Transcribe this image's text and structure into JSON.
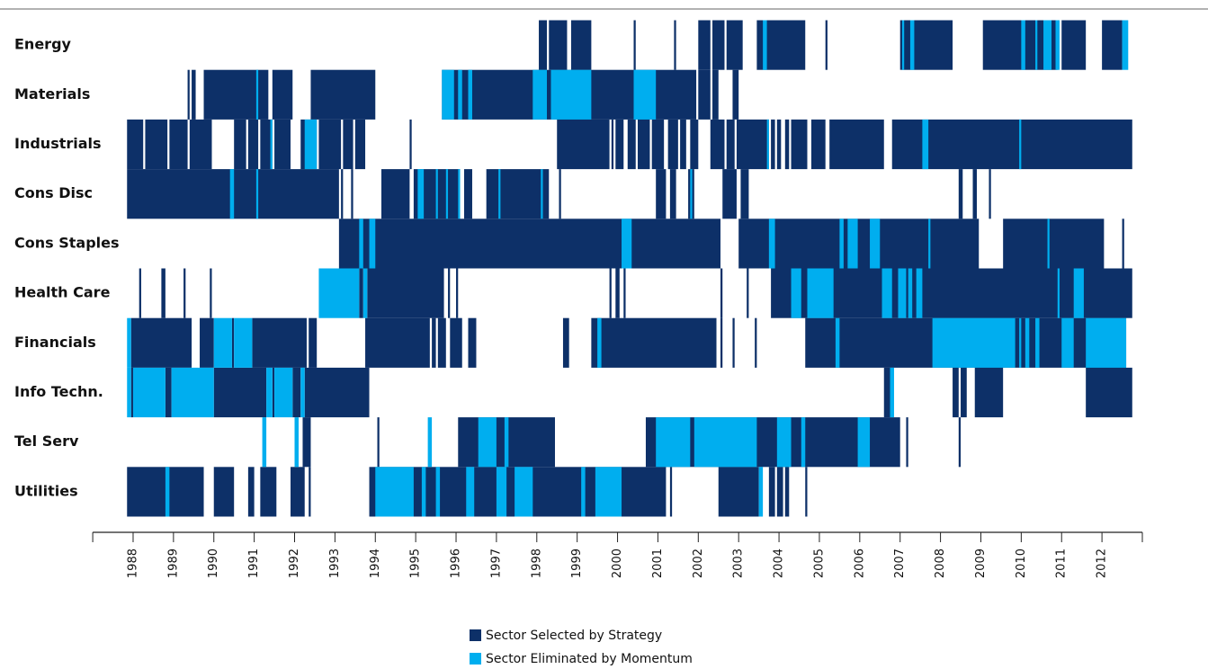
{
  "chart_data": {
    "type": "timeline",
    "categories": [
      "Energy",
      "Materials",
      "Industrials",
      "Cons Disc",
      "Cons Staples",
      "Health Care",
      "Financials",
      "Info Techn.",
      "Tel Serv",
      "Utilities"
    ],
    "xlim": [
      1987,
      2013
    ],
    "xticks": [
      1988,
      1989,
      1990,
      1991,
      1992,
      1993,
      1994,
      1995,
      1996,
      1997,
      1998,
      1999,
      2000,
      2001,
      2002,
      2003,
      2004,
      2005,
      2006,
      2007,
      2008,
      2009,
      2010,
      2011,
      2012
    ],
    "series": [
      {
        "name": "Sector Selected by Strategy",
        "color": "#0d3068",
        "intervals": [
          [
            [
              1998.05,
              1998.25
            ],
            [
              1998.3,
              1998.75
            ],
            [
              1998.85,
              1999.35
            ],
            [
              2000.4,
              2000.45
            ],
            [
              2001.4,
              2001.45
            ],
            [
              2002.0,
              2002.3
            ],
            [
              2002.35,
              2002.65
            ],
            [
              2002.7,
              2003.1
            ],
            [
              2003.45,
              2004.65
            ],
            [
              2005.15,
              2005.2
            ],
            [
              2007.0,
              2008.3
            ],
            [
              2009.05,
              2010.9
            ],
            [
              2011.0,
              2011.6
            ],
            [
              2012.0,
              2012.5
            ]
          ],
          [
            [
              1989.35,
              1989.4
            ],
            [
              1989.45,
              1989.55
            ],
            [
              1989.75,
              1991.35
            ],
            [
              1991.45,
              1991.95
            ],
            [
              1992.4,
              1994.0
            ],
            [
              1995.65,
              2001.95
            ],
            [
              2002.0,
              2002.3
            ],
            [
              2002.35,
              2002.5
            ],
            [
              2002.85,
              2003.0
            ]
          ],
          [
            [
              1987.85,
              1988.25
            ],
            [
              1988.3,
              1988.85
            ],
            [
              1988.9,
              1989.35
            ],
            [
              1989.4,
              1989.95
            ],
            [
              1990.5,
              1990.8
            ],
            [
              1990.85,
              1991.1
            ],
            [
              1991.15,
              1991.45
            ],
            [
              1991.5,
              1991.9
            ],
            [
              1992.15,
              1992.55
            ],
            [
              1992.6,
              1993.15
            ],
            [
              1993.2,
              1993.45
            ],
            [
              1993.5,
              1993.75
            ],
            [
              1994.85,
              1994.9
            ],
            [
              1998.5,
              1999.8
            ],
            [
              1999.85,
              1999.9
            ],
            [
              1999.95,
              2000.15
            ],
            [
              2000.25,
              2000.45
            ],
            [
              2000.5,
              2000.8
            ],
            [
              2000.85,
              2001.15
            ],
            [
              2001.25,
              2001.5
            ],
            [
              2001.55,
              2001.7
            ],
            [
              2001.8,
              2002.0
            ],
            [
              2002.3,
              2002.65
            ],
            [
              2002.7,
              2002.9
            ],
            [
              2002.95,
              2003.75
            ],
            [
              2003.8,
              2003.9
            ],
            [
              2003.95,
              2004.05
            ],
            [
              2004.15,
              2004.25
            ],
            [
              2004.3,
              2004.7
            ],
            [
              2004.8,
              2005.15
            ],
            [
              2005.25,
              2006.6
            ],
            [
              2006.8,
              2012.75
            ]
          ],
          [
            [
              1987.85,
              1993.1
            ],
            [
              1993.15,
              1993.2
            ],
            [
              1993.4,
              1993.45
            ],
            [
              1994.15,
              1994.85
            ],
            [
              1994.95,
              1996.1
            ],
            [
              1996.2,
              1996.4
            ],
            [
              1996.75,
              1998.3
            ],
            [
              1998.55,
              1998.6
            ],
            [
              2000.95,
              2001.2
            ],
            [
              2001.3,
              2001.45
            ],
            [
              2001.75,
              2001.9
            ],
            [
              2002.6,
              2002.95
            ],
            [
              2003.05,
              2003.25
            ],
            [
              2008.45,
              2008.55
            ],
            [
              2008.8,
              2008.9
            ],
            [
              2009.2,
              2009.25
            ]
          ],
          [
            [
              1993.1,
              2002.55
            ],
            [
              2003.0,
              2008.95
            ],
            [
              2009.55,
              2012.05
            ],
            [
              2012.5,
              2012.55
            ]
          ],
          [
            [
              1988.15,
              1988.2
            ],
            [
              1988.7,
              1988.8
            ],
            [
              1989.25,
              1989.3
            ],
            [
              1989.9,
              1989.95
            ],
            [
              1993.6,
              1993.7
            ],
            [
              1993.8,
              1995.7
            ],
            [
              1995.8,
              1995.85
            ],
            [
              1996.0,
              1996.05
            ],
            [
              1999.8,
              1999.85
            ],
            [
              1999.95,
              2000.05
            ],
            [
              2000.15,
              2000.2
            ],
            [
              2002.55,
              2002.6
            ],
            [
              2003.2,
              2003.25
            ],
            [
              2003.8,
              2012.75
            ]
          ],
          [
            [
              1987.95,
              1989.45
            ],
            [
              1989.65,
              1990.0
            ],
            [
              1990.45,
              1990.5
            ],
            [
              1990.95,
              1992.3
            ],
            [
              1992.35,
              1992.55
            ],
            [
              1993.75,
              1995.35
            ],
            [
              1995.4,
              1995.5
            ],
            [
              1995.55,
              1995.75
            ],
            [
              1995.85,
              1996.15
            ],
            [
              1996.3,
              1996.5
            ],
            [
              1998.65,
              1998.8
            ],
            [
              1999.35,
              2002.45
            ],
            [
              2002.55,
              2002.6
            ],
            [
              2002.85,
              2002.9
            ],
            [
              2003.4,
              2003.45
            ],
            [
              2004.65,
              2012.6
            ]
          ],
          [
            [
              1987.95,
              1988.0
            ],
            [
              1988.8,
              1988.95
            ],
            [
              1990.0,
              1991.3
            ],
            [
              1991.45,
              1991.5
            ],
            [
              1991.95,
              1992.15
            ],
            [
              1992.25,
              1993.85
            ],
            [
              2006.6,
              2006.75
            ],
            [
              2008.3,
              2008.45
            ],
            [
              2008.5,
              2008.65
            ],
            [
              2008.85,
              2009.55
            ],
            [
              2011.6,
              2012.75
            ]
          ],
          [
            [
              1992.2,
              1992.4
            ],
            [
              1994.05,
              1994.1
            ],
            [
              1996.05,
              1998.45
            ],
            [
              2000.7,
              2007.0
            ],
            [
              2007.15,
              2007.2
            ],
            [
              2008.45,
              2008.5
            ]
          ],
          [
            [
              1987.85,
              1989.75
            ],
            [
              1990.0,
              1990.5
            ],
            [
              1990.85,
              1991.0
            ],
            [
              1991.15,
              1991.55
            ],
            [
              1991.9,
              1992.25
            ],
            [
              1992.35,
              1992.4
            ],
            [
              1993.85,
              2001.2
            ],
            [
              2001.3,
              2001.35
            ],
            [
              2002.5,
              2003.5
            ],
            [
              2003.75,
              2003.9
            ],
            [
              2003.95,
              2004.1
            ],
            [
              2004.15,
              2004.25
            ],
            [
              2004.65,
              2004.7
            ]
          ]
        ]
      },
      {
        "name": "Sector Eliminated by Momentum",
        "color": "#00aeef",
        "intervals": [
          [
            [
              2003.6,
              2003.7
            ],
            [
              2007.05,
              2007.1
            ],
            [
              2007.25,
              2007.35
            ],
            [
              2010.0,
              2010.1
            ],
            [
              2010.35,
              2010.4
            ],
            [
              2010.55,
              2010.75
            ],
            [
              2010.85,
              2010.95
            ],
            [
              2012.5,
              2012.65
            ]
          ],
          [
            [
              1991.05,
              1991.1
            ],
            [
              1995.65,
              1995.95
            ],
            [
              1996.05,
              1996.15
            ],
            [
              1996.3,
              1996.4
            ],
            [
              1997.9,
              1998.25
            ],
            [
              1998.35,
              1999.35
            ],
            [
              2000.4,
              2000.95
            ]
          ],
          [
            [
              1991.4,
              1991.45
            ],
            [
              1992.25,
              1992.55
            ],
            [
              2003.7,
              2003.75
            ],
            [
              2007.55,
              2007.7
            ],
            [
              2009.95,
              2010.0
            ]
          ],
          [
            [
              1990.4,
              1990.5
            ],
            [
              1991.05,
              1991.1
            ],
            [
              1995.05,
              1995.2
            ],
            [
              1995.5,
              1995.55
            ],
            [
              1995.75,
              1995.8
            ],
            [
              1996.05,
              1996.1
            ],
            [
              1997.05,
              1997.1
            ],
            [
              1998.1,
              1998.15
            ],
            [
              2001.8,
              2001.85
            ]
          ],
          [
            [
              1993.6,
              1993.7
            ],
            [
              1993.85,
              1994.0
            ],
            [
              2000.1,
              2000.35
            ],
            [
              2003.75,
              2003.9
            ],
            [
              2005.5,
              2005.6
            ],
            [
              2005.7,
              2005.95
            ],
            [
              2006.25,
              2006.5
            ],
            [
              2007.7,
              2007.75
            ],
            [
              2010.65,
              2010.7
            ]
          ],
          [
            [
              1992.6,
              1993.6
            ],
            [
              1993.7,
              1993.8
            ],
            [
              2004.3,
              2004.55
            ],
            [
              2004.7,
              2005.35
            ],
            [
              2006.55,
              2006.8
            ],
            [
              2006.95,
              2007.15
            ],
            [
              2007.2,
              2007.3
            ],
            [
              2007.4,
              2007.55
            ],
            [
              2010.9,
              2010.95
            ],
            [
              2011.3,
              2011.55
            ]
          ],
          [
            [
              1987.85,
              1987.95
            ],
            [
              1990.0,
              1990.45
            ],
            [
              1990.5,
              1990.95
            ],
            [
              1999.5,
              1999.6
            ],
            [
              2005.4,
              2005.5
            ],
            [
              2007.8,
              2009.85
            ],
            [
              2009.95,
              2010.0
            ],
            [
              2010.1,
              2010.2
            ],
            [
              2010.35,
              2010.45
            ],
            [
              2011.0,
              2011.3
            ],
            [
              2011.6,
              2012.6
            ]
          ],
          [
            [
              1987.85,
              1987.95
            ],
            [
              1988.0,
              1988.8
            ],
            [
              1988.95,
              1990.0
            ],
            [
              1991.3,
              1991.45
            ],
            [
              1991.5,
              1991.95
            ],
            [
              1992.15,
              1992.25
            ],
            [
              2006.75,
              2006.85
            ]
          ],
          [
            [
              1991.2,
              1991.3
            ],
            [
              1992.0,
              1992.1
            ],
            [
              1995.3,
              1995.4
            ],
            [
              1996.55,
              1997.0
            ],
            [
              1997.2,
              1997.3
            ],
            [
              2000.95,
              2001.8
            ],
            [
              2001.9,
              2003.45
            ],
            [
              2003.95,
              2004.3
            ],
            [
              2004.55,
              2004.65
            ],
            [
              2005.95,
              2006.25
            ]
          ],
          [
            [
              1988.8,
              1988.9
            ],
            [
              1994.0,
              1994.95
            ],
            [
              1995.15,
              1995.25
            ],
            [
              1995.5,
              1995.6
            ],
            [
              1996.25,
              1996.45
            ],
            [
              1997.0,
              1997.25
            ],
            [
              1997.45,
              1997.9
            ],
            [
              1999.1,
              1999.2
            ],
            [
              1999.45,
              2000.1
            ],
            [
              2003.5,
              2003.6
            ]
          ]
        ]
      }
    ]
  }
}
